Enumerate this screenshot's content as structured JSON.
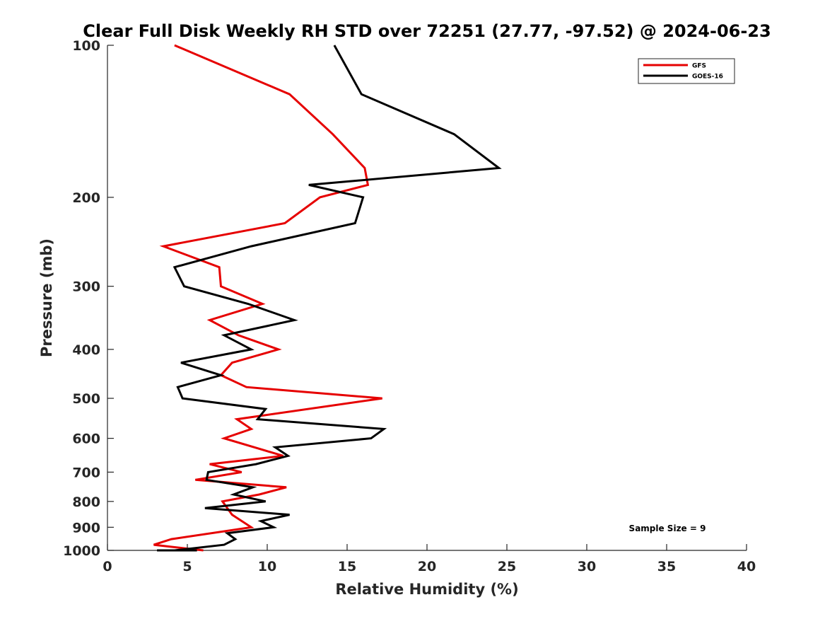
{
  "chart_data": {
    "type": "line",
    "title": "Clear Full Disk Weekly RH STD over 72251 (27.77, -97.52) @ 2024-06-23",
    "xlabel": "Relative Humidity (%)",
    "ylabel": "Pressure (mb)",
    "xlim": [
      0,
      40
    ],
    "ylim": [
      100,
      1000
    ],
    "yscale": "log",
    "y_reversed": true,
    "xticks": [
      0,
      5,
      10,
      15,
      20,
      25,
      30,
      35,
      40
    ],
    "yticks": [
      100,
      200,
      300,
      400,
      500,
      600,
      700,
      800,
      900,
      1000
    ],
    "grid": false,
    "legend_position": "top-right",
    "annotation": "Sample Size = 9",
    "series": [
      {
        "name": "GFS",
        "color": "#e60000",
        "points": [
          [
            4.2,
            100
          ],
          [
            11.4,
            125
          ],
          [
            14.1,
            150
          ],
          [
            16.1,
            175
          ],
          [
            16.3,
            189
          ],
          [
            13.3,
            200
          ],
          [
            11.1,
            225
          ],
          [
            3.5,
            250
          ],
          [
            7.0,
            275
          ],
          [
            7.1,
            300
          ],
          [
            9.7,
            325
          ],
          [
            6.4,
            350
          ],
          [
            8.2,
            375
          ],
          [
            10.7,
            400
          ],
          [
            7.8,
            425
          ],
          [
            7.1,
            450
          ],
          [
            8.7,
            475
          ],
          [
            17.2,
            500
          ],
          [
            8.1,
            550
          ],
          [
            9.0,
            575
          ],
          [
            7.3,
            600
          ],
          [
            11.0,
            650
          ],
          [
            6.4,
            675
          ],
          [
            8.4,
            700
          ],
          [
            5.5,
            725
          ],
          [
            11.2,
            750
          ],
          [
            9.5,
            775
          ],
          [
            7.2,
            800
          ],
          [
            7.8,
            850
          ],
          [
            9.0,
            900
          ],
          [
            4.0,
            950
          ],
          [
            2.9,
            975
          ],
          [
            6.0,
            1000
          ]
        ]
      },
      {
        "name": "GOES-16",
        "color": "#000000",
        "points": [
          [
            14.2,
            100
          ],
          [
            15.9,
            125
          ],
          [
            21.7,
            150
          ],
          [
            24.5,
            175
          ],
          [
            12.6,
            189
          ],
          [
            16.0,
            200
          ],
          [
            15.5,
            225
          ],
          [
            9.0,
            250
          ],
          [
            4.2,
            275
          ],
          [
            4.8,
            300
          ],
          [
            8.8,
            325
          ],
          [
            11.7,
            350
          ],
          [
            7.3,
            375
          ],
          [
            9.0,
            400
          ],
          [
            4.6,
            425
          ],
          [
            7.1,
            450
          ],
          [
            4.4,
            475
          ],
          [
            4.7,
            500
          ],
          [
            9.9,
            525
          ],
          [
            9.4,
            550
          ],
          [
            17.3,
            575
          ],
          [
            16.5,
            600
          ],
          [
            10.5,
            625
          ],
          [
            11.3,
            650
          ],
          [
            9.3,
            675
          ],
          [
            6.3,
            700
          ],
          [
            6.2,
            725
          ],
          [
            9.1,
            750
          ],
          [
            7.9,
            775
          ],
          [
            9.9,
            800
          ],
          [
            6.1,
            825
          ],
          [
            11.4,
            850
          ],
          [
            9.6,
            875
          ],
          [
            10.4,
            900
          ],
          [
            7.5,
            925
          ],
          [
            8.0,
            950
          ],
          [
            7.3,
            975
          ],
          [
            4.2,
            1000
          ],
          [
            4.3,
            1000
          ],
          [
            3.1,
            1000
          ],
          [
            5.6,
            1000
          ]
        ]
      }
    ]
  }
}
